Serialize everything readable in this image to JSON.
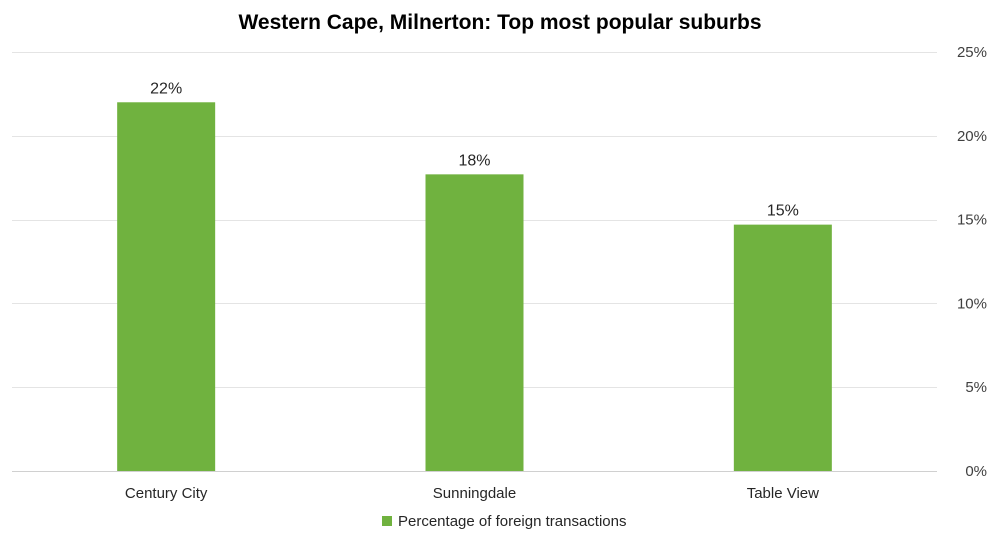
{
  "chart_data": {
    "type": "bar",
    "title": "Western Cape, Milnerton: Top most popular suburbs",
    "categories": [
      "Century City",
      "Sunningdale",
      "Table View"
    ],
    "series": [
      {
        "name": "Percentage of foreign transactions",
        "values": [
          22,
          17.7,
          14.7
        ],
        "data_labels": [
          "22%",
          "18%",
          "15%"
        ],
        "color": "#70b23f"
      }
    ],
    "ylim": [
      0,
      25
    ],
    "y_ticks": [
      0,
      5,
      10,
      15,
      20,
      25
    ],
    "y_tick_labels": [
      "0%",
      "5%",
      "10%",
      "15%",
      "20%",
      "25%"
    ],
    "y_axis_side": "right",
    "xlabel": "",
    "ylabel": "",
    "grid": true,
    "legend_position": "bottom"
  }
}
